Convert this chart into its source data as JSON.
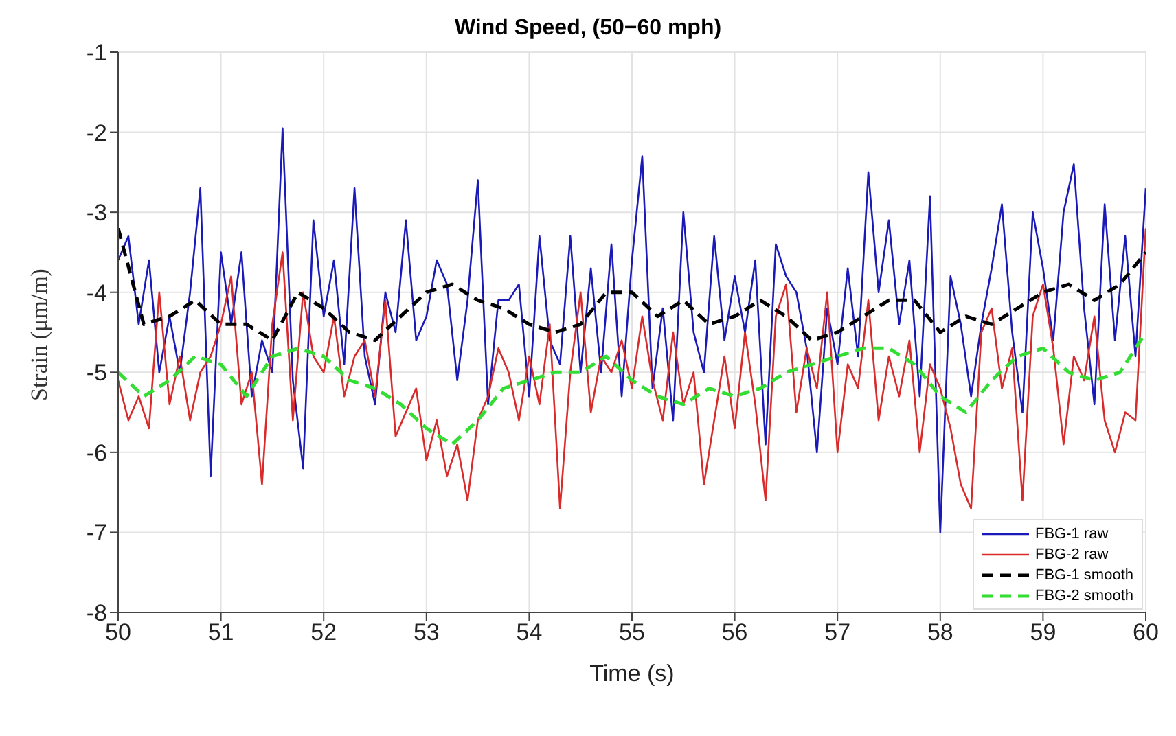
{
  "chart_data": {
    "type": "line",
    "title": "Wind Speed, (50−60 mph)",
    "xlabel": "Time (s)",
    "ylabel": "Strain (μm/m)",
    "xlim": [
      50,
      60
    ],
    "xticks": [
      50,
      51,
      52,
      53,
      54,
      55,
      56,
      57,
      58,
      59,
      60
    ],
    "ylim": [
      -8,
      -1
    ],
    "yticks": [
      -8,
      -7,
      -6,
      -5,
      -4,
      -3,
      -2,
      -1
    ],
    "grid": true,
    "legend": "bottom right",
    "marker": "none",
    "series": [
      {
        "name": "FBG-1 raw",
        "color": "#1a1ab8",
        "line_style": "solid",
        "x": [
          50.0,
          50.1,
          50.2,
          50.3,
          50.4,
          50.5,
          50.6,
          50.7,
          50.8,
          50.9,
          51.0,
          51.1,
          51.2,
          51.3,
          51.4,
          51.5,
          51.6,
          51.7,
          51.8,
          51.9,
          52.0,
          52.1,
          52.2,
          52.3,
          52.4,
          52.5,
          52.6,
          52.7,
          52.8,
          52.9,
          53.0,
          53.1,
          53.2,
          53.3,
          53.4,
          53.5,
          53.6,
          53.7,
          53.8,
          53.9,
          54.0,
          54.1,
          54.2,
          54.3,
          54.4,
          54.5,
          54.6,
          54.7,
          54.8,
          54.9,
          55.0,
          55.1,
          55.2,
          55.3,
          55.4,
          55.5,
          55.6,
          55.7,
          55.8,
          55.9,
          56.0,
          56.1,
          56.2,
          56.3,
          56.4,
          56.5,
          56.6,
          56.7,
          56.8,
          56.9,
          57.0,
          57.1,
          57.2,
          57.3,
          57.4,
          57.5,
          57.6,
          57.7,
          57.8,
          57.9,
          58.0,
          58.1,
          58.2,
          58.3,
          58.4,
          58.5,
          58.6,
          58.7,
          58.8,
          58.9,
          59.0,
          59.1,
          59.2,
          59.3,
          59.4,
          59.5,
          59.6,
          59.7,
          59.8,
          59.9,
          60.0
        ],
        "values": [
          -3.6,
          -3.3,
          -4.4,
          -3.6,
          -5.0,
          -4.3,
          -5.0,
          -4.0,
          -2.7,
          -6.3,
          -3.5,
          -4.4,
          -3.5,
          -5.3,
          -4.6,
          -5.0,
          -1.95,
          -5.1,
          -6.2,
          -3.1,
          -4.3,
          -3.6,
          -4.9,
          -2.7,
          -4.8,
          -5.4,
          -4.0,
          -4.5,
          -3.1,
          -4.6,
          -4.3,
          -3.6,
          -3.9,
          -5.1,
          -4.1,
          -2.6,
          -5.4,
          -4.1,
          -4.1,
          -3.9,
          -5.3,
          -3.3,
          -4.6,
          -4.9,
          -3.3,
          -5.0,
          -3.7,
          -5.0,
          -3.4,
          -5.3,
          -3.6,
          -2.3,
          -5.2,
          -4.2,
          -5.6,
          -3.0,
          -4.5,
          -5.0,
          -3.3,
          -4.6,
          -3.8,
          -4.5,
          -3.6,
          -5.9,
          -3.4,
          -3.8,
          -4.0,
          -4.7,
          -6.0,
          -4.2,
          -4.9,
          -3.7,
          -4.8,
          -2.5,
          -4.0,
          -3.1,
          -4.4,
          -3.6,
          -5.3,
          -2.8,
          -7.0,
          -3.8,
          -4.4,
          -5.3,
          -4.4,
          -3.7,
          -2.9,
          -4.5,
          -5.5,
          -3.0,
          -3.7,
          -4.6,
          -3.0,
          -2.4,
          -4.2,
          -5.4,
          -2.9,
          -4.6,
          -3.3,
          -4.8,
          -2.7
        ]
      },
      {
        "name": "FBG-2 raw",
        "color": "#d92b2b",
        "line_style": "solid",
        "x": [
          50.0,
          50.1,
          50.2,
          50.3,
          50.4,
          50.5,
          50.6,
          50.7,
          50.8,
          50.9,
          51.0,
          51.1,
          51.2,
          51.3,
          51.4,
          51.5,
          51.6,
          51.7,
          51.8,
          51.9,
          52.0,
          52.1,
          52.2,
          52.3,
          52.4,
          52.5,
          52.6,
          52.7,
          52.8,
          52.9,
          53.0,
          53.1,
          53.2,
          53.3,
          53.4,
          53.5,
          53.6,
          53.7,
          53.8,
          53.9,
          54.0,
          54.1,
          54.2,
          54.3,
          54.4,
          54.5,
          54.6,
          54.7,
          54.8,
          54.9,
          55.0,
          55.1,
          55.2,
          55.3,
          55.4,
          55.5,
          55.6,
          55.7,
          55.8,
          55.9,
          56.0,
          56.1,
          56.2,
          56.3,
          56.4,
          56.5,
          56.6,
          56.7,
          56.8,
          56.9,
          57.0,
          57.1,
          57.2,
          57.3,
          57.4,
          57.5,
          57.6,
          57.7,
          57.8,
          57.9,
          58.0,
          58.1,
          58.2,
          58.3,
          58.4,
          58.5,
          58.6,
          58.7,
          58.8,
          58.9,
          59.0,
          59.1,
          59.2,
          59.3,
          59.4,
          59.5,
          59.6,
          59.7,
          59.8,
          59.9,
          60.0
        ],
        "values": [
          -5.1,
          -5.6,
          -5.3,
          -5.7,
          -4.0,
          -5.4,
          -4.8,
          -5.6,
          -5.0,
          -4.8,
          -4.4,
          -3.8,
          -5.4,
          -5.0,
          -6.4,
          -4.4,
          -3.5,
          -5.6,
          -4.0,
          -4.8,
          -5.0,
          -4.3,
          -5.3,
          -4.8,
          -4.6,
          -5.3,
          -4.1,
          -5.8,
          -5.5,
          -5.2,
          -6.1,
          -5.6,
          -6.3,
          -5.9,
          -6.6,
          -5.6,
          -5.3,
          -4.7,
          -5.0,
          -5.6,
          -4.8,
          -5.4,
          -4.4,
          -6.7,
          -5.0,
          -4.0,
          -5.5,
          -4.8,
          -5.0,
          -4.6,
          -5.2,
          -4.3,
          -5.1,
          -5.6,
          -4.5,
          -5.4,
          -5.0,
          -6.4,
          -5.6,
          -4.8,
          -5.7,
          -4.5,
          -5.4,
          -6.6,
          -4.3,
          -3.9,
          -5.5,
          -4.7,
          -5.2,
          -4.0,
          -6.0,
          -4.9,
          -5.2,
          -4.1,
          -5.6,
          -4.8,
          -5.3,
          -4.6,
          -6.0,
          -4.9,
          -5.2,
          -5.7,
          -6.4,
          -6.7,
          -4.5,
          -4.2,
          -5.2,
          -4.7,
          -6.6,
          -4.3,
          -3.9,
          -4.7,
          -5.9,
          -4.8,
          -5.1,
          -4.3,
          -5.6,
          -6.0,
          -5.5,
          -5.6,
          -3.2
        ]
      },
      {
        "name": "FBG-1 smooth",
        "color": "#000000",
        "line_style": "dashed",
        "x": [
          50.0,
          50.25,
          50.5,
          50.75,
          51.0,
          51.25,
          51.5,
          51.75,
          52.0,
          52.25,
          52.5,
          52.75,
          53.0,
          53.25,
          53.5,
          53.75,
          54.0,
          54.25,
          54.5,
          54.75,
          55.0,
          55.25,
          55.5,
          55.75,
          56.0,
          56.25,
          56.5,
          56.75,
          57.0,
          57.25,
          57.5,
          57.75,
          58.0,
          58.25,
          58.5,
          58.75,
          59.0,
          59.25,
          59.5,
          59.75,
          60.0
        ],
        "values": [
          -3.2,
          -4.4,
          -4.3,
          -4.1,
          -4.4,
          -4.4,
          -4.6,
          -4.0,
          -4.2,
          -4.5,
          -4.6,
          -4.3,
          -4.0,
          -3.9,
          -4.1,
          -4.2,
          -4.4,
          -4.5,
          -4.4,
          -4.0,
          -4.0,
          -4.3,
          -4.1,
          -4.4,
          -4.3,
          -4.1,
          -4.3,
          -4.6,
          -4.5,
          -4.3,
          -4.1,
          -4.1,
          -4.5,
          -4.3,
          -4.4,
          -4.2,
          -4.0,
          -3.9,
          -4.1,
          -3.9,
          -3.5
        ]
      },
      {
        "name": "FBG-2 smooth",
        "color": "#33dd33",
        "line_style": "dashed",
        "x": [
          50.0,
          50.25,
          50.5,
          50.75,
          51.0,
          51.25,
          51.5,
          51.75,
          52.0,
          52.25,
          52.5,
          52.75,
          53.0,
          53.25,
          53.5,
          53.75,
          54.0,
          54.25,
          54.5,
          54.75,
          55.0,
          55.25,
          55.5,
          55.75,
          56.0,
          56.25,
          56.5,
          56.75,
          57.0,
          57.25,
          57.5,
          57.75,
          58.0,
          58.25,
          58.5,
          58.75,
          59.0,
          59.25,
          59.5,
          59.75,
          60.0
        ],
        "values": [
          -5.0,
          -5.3,
          -5.1,
          -4.8,
          -4.9,
          -5.3,
          -4.8,
          -4.7,
          -4.8,
          -5.1,
          -5.2,
          -5.4,
          -5.7,
          -5.9,
          -5.6,
          -5.2,
          -5.1,
          -5.0,
          -5.0,
          -4.8,
          -5.1,
          -5.3,
          -5.4,
          -5.2,
          -5.3,
          -5.2,
          -5.0,
          -4.9,
          -4.8,
          -4.7,
          -4.7,
          -4.9,
          -5.3,
          -5.5,
          -5.1,
          -4.8,
          -4.7,
          -5.0,
          -5.1,
          -5.0,
          -4.5
        ]
      }
    ]
  }
}
